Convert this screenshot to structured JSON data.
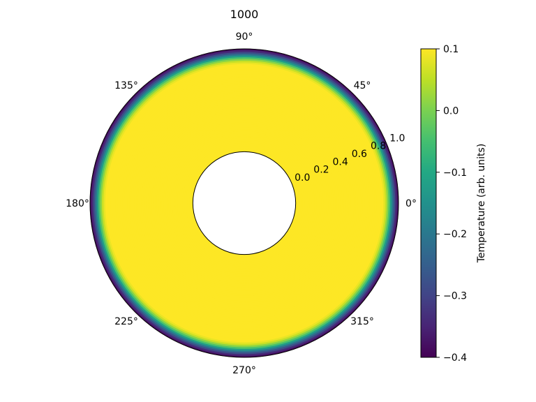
{
  "chart_data": {
    "type": "heatmap",
    "projection": "polar",
    "title": "1000",
    "angular_tick_labels": [
      "0°",
      "45°",
      "90°",
      "135°",
      "180°",
      "225°",
      "270°",
      "315°"
    ],
    "angular_ticks_deg": [
      0,
      45,
      90,
      135,
      180,
      225,
      270,
      315
    ],
    "radial_tick_labels": [
      "0.0",
      "0.2",
      "0.4",
      "0.6",
      "0.8",
      "1.0"
    ],
    "radial_ticks": [
      0.0,
      0.2,
      0.4,
      0.6,
      0.8,
      1.0
    ],
    "rlim": [
      -0.5,
      1.0
    ],
    "grid": false,
    "data_radial_range": [
      0.0,
      1.0
    ],
    "radial_profile": {
      "r": [
        0.0,
        0.85,
        0.88,
        0.91,
        0.94,
        0.97,
        1.0
      ],
      "value": [
        0.1,
        0.1,
        0.05,
        -0.05,
        -0.2,
        -0.33,
        -0.4
      ]
    },
    "colormap": "viridis",
    "colorbar": {
      "label": "Temperature (arb. units)",
      "vmin": -0.4,
      "vmax": 0.1,
      "tick_labels": [
        "−0.4",
        "−0.3",
        "−0.2",
        "−0.1",
        "0.0",
        "0.1"
      ],
      "tick_values": [
        -0.4,
        -0.3,
        -0.2,
        -0.1,
        0.0,
        0.1
      ]
    }
  }
}
